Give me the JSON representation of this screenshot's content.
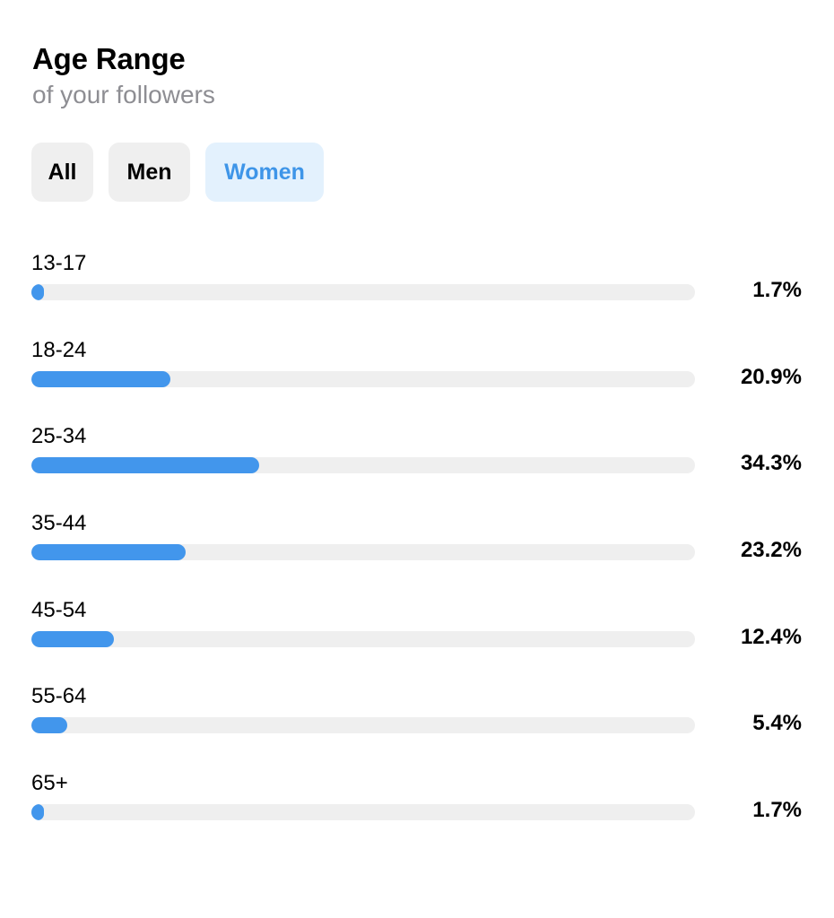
{
  "header": {
    "title": "Age Range",
    "subtitle": "of your followers"
  },
  "filters": {
    "items": [
      {
        "label": "All",
        "active": false
      },
      {
        "label": "Men",
        "active": false
      },
      {
        "label": "Women",
        "active": true
      }
    ]
  },
  "colors": {
    "accent": "#4296ec",
    "active_tab_bg": "#e3f1fd",
    "active_tab_text": "#3e95e8",
    "track": "#efefef",
    "subtitle": "#8e8e93"
  },
  "chart_data": {
    "type": "bar",
    "orientation": "horizontal",
    "categories": [
      "13-17",
      "18-24",
      "25-34",
      "35-44",
      "45-54",
      "55-64",
      "65+"
    ],
    "values": [
      1.7,
      20.9,
      34.3,
      23.2,
      12.4,
      5.4,
      1.7
    ],
    "value_labels": [
      "1.7%",
      "20.9%",
      "34.3%",
      "23.2%",
      "12.4%",
      "5.4%",
      "1.7%"
    ],
    "xlim": [
      0,
      100
    ],
    "grid": false
  }
}
